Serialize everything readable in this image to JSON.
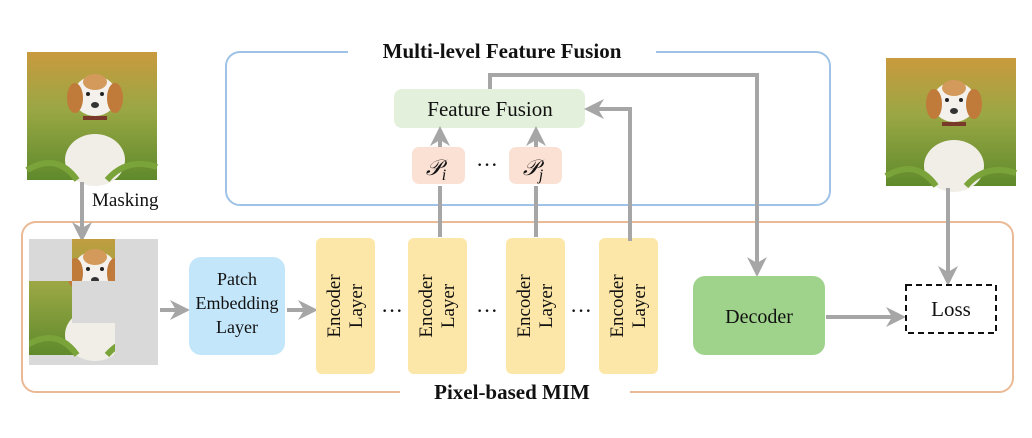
{
  "diagram": {
    "top_group_title": "Multi-level Feature Fusion",
    "bottom_group_title": "Pixel-based MIM",
    "masking_label": "Masking",
    "feature_fusion": "Feature Fusion",
    "p_i": "𝒫",
    "p_i_sub": "i",
    "p_j": "𝒫",
    "p_j_sub": "j",
    "ellipsis": "···",
    "patch_embedding": [
      "Patch",
      "Embedding",
      "Layer"
    ],
    "encoder": [
      "Encoder",
      "Layer"
    ],
    "decoder": "Decoder",
    "loss": "Loss"
  },
  "colors": {
    "top_group_border": "#9fc3e6",
    "bottom_group_border": "#eab996",
    "feature_fusion_fill": "#e3f1dc",
    "p_fill": "#fbe1d4",
    "patch_fill": "#c4e6fa",
    "encoder_fill": "#fde7a8",
    "decoder_fill": "#9fd38c",
    "arrow": "#a6a6a6",
    "mask_gray": "#d9d9d9"
  }
}
